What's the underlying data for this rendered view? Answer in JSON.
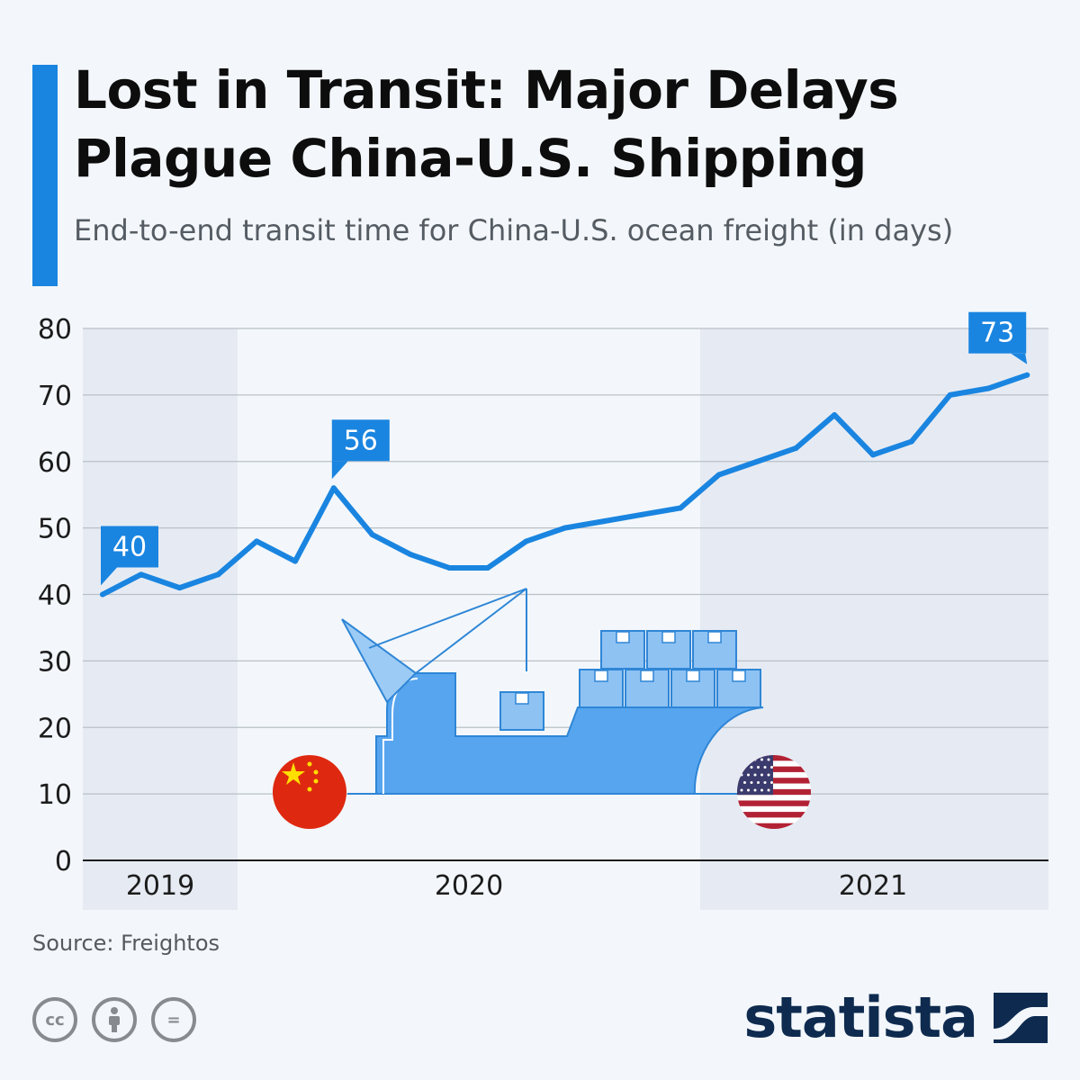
{
  "header": {
    "title": "Lost in Transit: Major Delays Plague China-U.S. Shipping",
    "subtitle": "End-to-end transit time for China-U.S. ocean freight (in days)"
  },
  "colors": {
    "accent": "#1a85e0",
    "line": "#1a85e0",
    "band": "#e6ebf3",
    "ship": "#57a5ef",
    "ship_dark": "#2f86d6",
    "brand": "#0e2a4f"
  },
  "chart_data": {
    "type": "line",
    "title": "Lost in Transit: Major Delays Plague China-U.S. Shipping",
    "subtitle": "End-to-end transit time for China-U.S. ocean freight (in days)",
    "xlabel": "",
    "ylabel": "",
    "ylim": [
      0,
      80
    ],
    "yticks": [
      0,
      10,
      20,
      30,
      40,
      50,
      60,
      70,
      80
    ],
    "year_labels": [
      "2019",
      "2020",
      "2021"
    ],
    "grid": true,
    "series": [
      {
        "values": [
          40,
          43,
          41,
          43,
          48,
          45,
          56,
          49,
          46,
          44,
          44,
          48,
          50,
          51,
          52,
          53,
          58,
          60,
          62,
          67,
          61,
          63,
          70,
          71,
          73
        ]
      }
    ],
    "callouts": [
      {
        "index": 0,
        "label": "40"
      },
      {
        "index": 6,
        "label": "56"
      },
      {
        "index": 24,
        "label": "73"
      }
    ]
  },
  "footer": {
    "source": "Source: Freightos",
    "license_icons": [
      "creative-commons-icon",
      "attribution-icon",
      "no-derivatives-icon"
    ],
    "cc_text": "cc",
    "nd_text": "=",
    "brand": "statista"
  }
}
